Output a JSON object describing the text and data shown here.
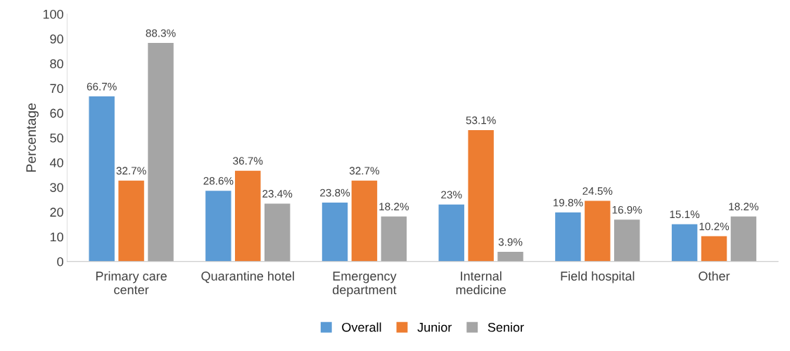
{
  "chart_data": {
    "type": "bar",
    "ylabel": "Percentage",
    "categories": [
      "Primary care\ncenter",
      "Quarantine hotel",
      "Emergency\ndepartment",
      "Internal\nmedicine",
      "Field hospital",
      "Other"
    ],
    "series": [
      {
        "name": "Overall",
        "color": "#5b9bd5",
        "values": [
          66.7,
          28.6,
          23.8,
          23,
          19.8,
          15.1
        ],
        "value_labels": [
          "66.7%",
          "28.6%",
          "23.8%",
          "23%",
          "19.8%",
          "15.1%"
        ]
      },
      {
        "name": "Junior",
        "color": "#ed7d31",
        "values": [
          32.7,
          36.7,
          32.7,
          53.1,
          24.5,
          10.2
        ],
        "value_labels": [
          "32.7%",
          "36.7%",
          "32.7%",
          "53.1%",
          "24.5%",
          "10.2%"
        ]
      },
      {
        "name": "Senior",
        "color": "#a5a5a5",
        "values": [
          88.3,
          23.4,
          18.2,
          3.9,
          16.9,
          18.2
        ],
        "value_labels": [
          "88.3%",
          "23.4%",
          "18.2%",
          "3.9%",
          "16.9%",
          "18.2%"
        ]
      }
    ],
    "ylim": [
      0,
      100
    ],
    "yticks": [
      0,
      10,
      20,
      30,
      40,
      50,
      60,
      70,
      80,
      90,
      100
    ],
    "grid": false,
    "legend": "bottom"
  }
}
